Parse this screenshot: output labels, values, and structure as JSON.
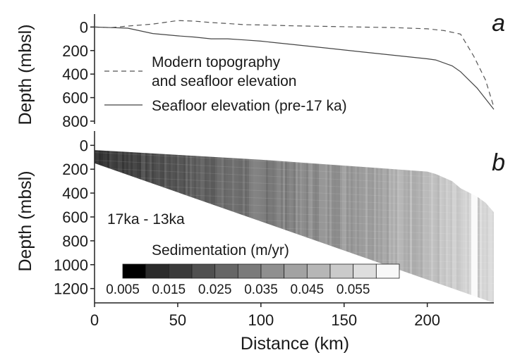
{
  "chart_data": [
    {
      "type": "line",
      "panel_label": "a",
      "ylabel": "Depth (mbsl)",
      "xlabel": "",
      "xlim": [
        0,
        240
      ],
      "ylim": [
        800,
        -110
      ],
      "yticks": [
        "0",
        "200",
        "400",
        "600",
        "800"
      ],
      "series": [
        {
          "name": "Modern topography and seafloor elevation",
          "style": "dashed",
          "x": [
            0,
            10,
            20,
            35,
            50,
            60,
            70,
            80,
            90,
            100,
            120,
            140,
            160,
            180,
            200,
            210,
            220,
            228,
            235,
            240
          ],
          "y": [
            0,
            5,
            -8,
            -25,
            -55,
            -50,
            -38,
            -30,
            -20,
            -18,
            -10,
            -5,
            0,
            5,
            15,
            30,
            60,
            250,
            450,
            680
          ]
        },
        {
          "name": "Seafloor elevation (pre-17 ka)",
          "style": "solid",
          "x": [
            0,
            10,
            20,
            35,
            50,
            60,
            70,
            80,
            90,
            100,
            120,
            140,
            160,
            180,
            200,
            205,
            215,
            220,
            230,
            240
          ],
          "y": [
            0,
            5,
            10,
            55,
            75,
            85,
            100,
            100,
            110,
            120,
            150,
            180,
            210,
            240,
            270,
            280,
            330,
            380,
            520,
            700
          ]
        }
      ]
    },
    {
      "type": "heatmap",
      "panel_label": "b",
      "ylabel": "Depth (mbsl)",
      "xlabel": "Distance (km)",
      "annotation": "17ka - 13ka",
      "xlim": [
        0,
        240
      ],
      "ylim": [
        1320,
        -120
      ],
      "yticks": [
        "0",
        "200",
        "400",
        "600",
        "800",
        "1000",
        "1200"
      ],
      "xticks": [
        "0",
        "50",
        "100",
        "150",
        "200"
      ],
      "top_boundary": {
        "x": [
          0,
          20,
          50,
          100,
          150,
          200,
          205,
          215,
          220,
          230,
          235,
          240
        ],
        "y": [
          40,
          55,
          80,
          120,
          170,
          220,
          240,
          300,
          360,
          430,
          480,
          560
        ]
      },
      "bottom_boundary": {
        "x": [
          0,
          240
        ],
        "y": [
          150,
          1320
        ]
      },
      "colorbar": {
        "title": "Sedimentation (m/yr)",
        "tick_labels": [
          "0.005",
          "0.015",
          "0.025",
          "0.035",
          "0.045",
          "0.055"
        ],
        "bins": [
          0.005,
          0.01,
          0.015,
          0.02,
          0.025,
          0.03,
          0.035,
          0.04,
          0.045,
          0.05,
          0.055
        ],
        "colors": [
          "#000000",
          "#2b2b2b",
          "#3a3a3a",
          "#505050",
          "#666666",
          "#7a7a7a",
          "#8f8f8f",
          "#a2a2a2",
          "#b6b6b6",
          "#cacaca",
          "#dedede",
          "#f8f8f8"
        ]
      }
    }
  ]
}
